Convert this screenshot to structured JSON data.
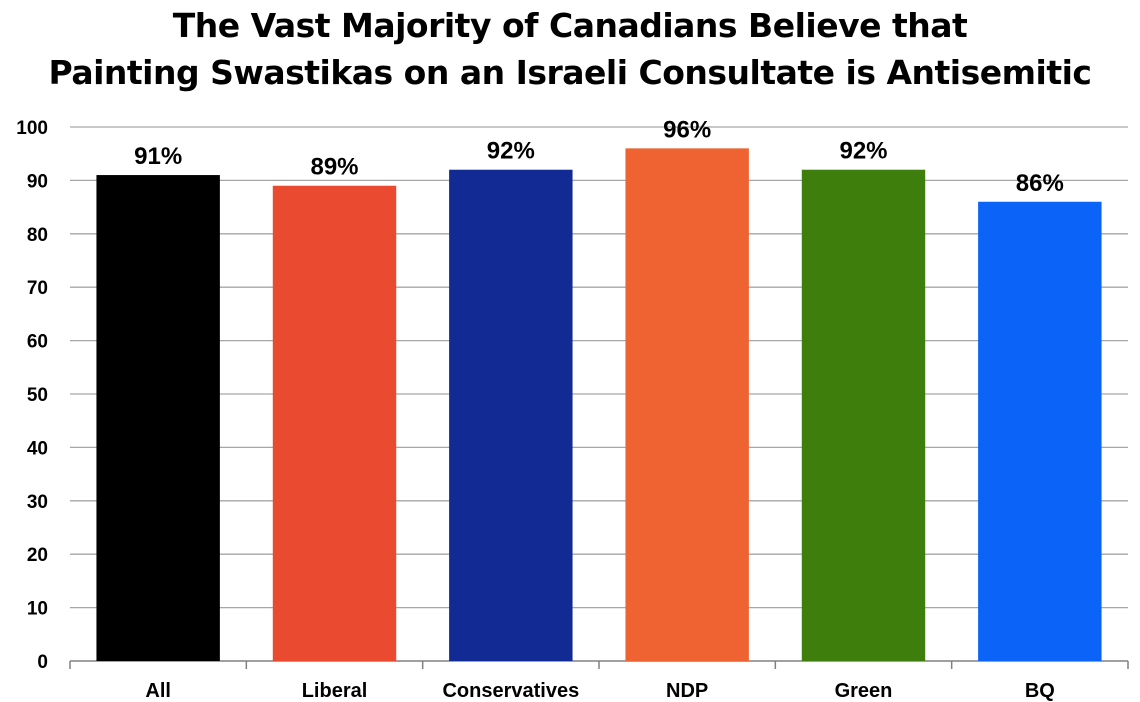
{
  "chart_data": {
    "type": "bar",
    "title_lines": [
      "The Vast Majority of Canadians Believe that",
      "Painting Swastikas on an Israeli Consultate is Antisemitic"
    ],
    "categories": [
      "All",
      "Liberal",
      "Conservatives",
      "NDP",
      "Green",
      "BQ"
    ],
    "values": [
      91,
      89,
      92,
      96,
      92,
      86
    ],
    "data_labels": [
      "91%",
      "89%",
      "92%",
      "96%",
      "92%",
      "86%"
    ],
    "colors": [
      "#000000",
      "#ea4a2f",
      "#112a94",
      "#ee6331",
      "#3d7e0d",
      "#0c63f8"
    ],
    "ylim": [
      0,
      100
    ],
    "yticks": [
      0,
      10,
      20,
      30,
      40,
      50,
      60,
      70,
      80,
      90,
      100
    ],
    "grid": true,
    "legend": "none"
  }
}
